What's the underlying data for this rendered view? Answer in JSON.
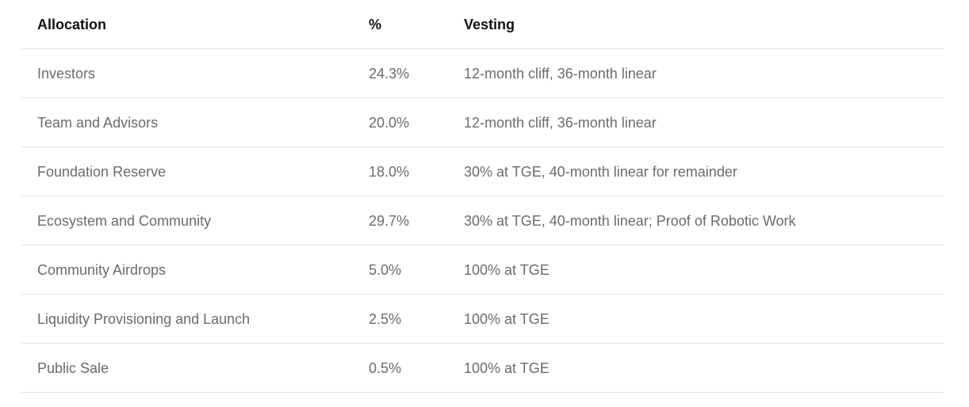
{
  "table": {
    "header": [
      "Allocation",
      "%",
      "Vesting"
    ],
    "rows": [
      [
        "Investors",
        "24.3%",
        "12-month cliff, 36-month linear"
      ],
      [
        "Team and Advisors",
        "20.0%",
        "12-month cliff, 36-month linear"
      ],
      [
        "Foundation Reserve",
        "18.0%",
        "30% at TGE, 40-month linear for remainder"
      ],
      [
        "Ecosystem and Community",
        "29.7%",
        "30% at TGE, 40-month linear; Proof of Robotic Work"
      ],
      [
        "Community Airdrops",
        "5.0%",
        "100% at TGE"
      ],
      [
        "Liquidity Provisioning and Launch",
        "2.5%",
        "100% at TGE"
      ],
      [
        "Public Sale",
        "0.5%",
        "100% at TGE"
      ]
    ]
  }
}
